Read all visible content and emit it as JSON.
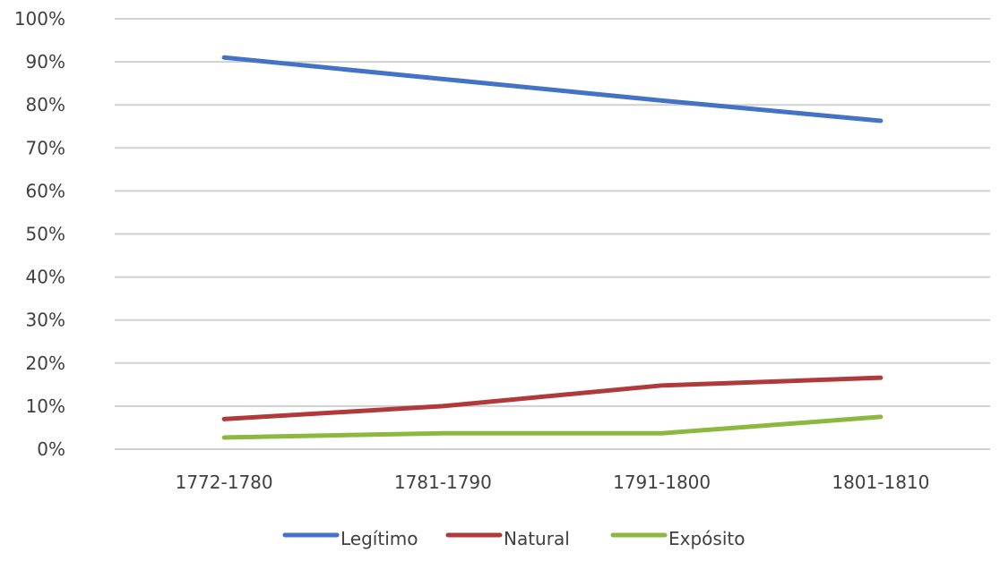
{
  "chart_data": {
    "type": "line",
    "categories": [
      "1772-1780",
      "1781-1790",
      "1791-1800",
      "1801-1810"
    ],
    "series": [
      {
        "name": "Legítimo",
        "color": "#4472C4",
        "values": [
          91,
          86,
          81,
          76.3
        ]
      },
      {
        "name": "Natural",
        "color": "#B03A3A",
        "values": [
          7,
          10,
          14.8,
          16.6
        ]
      },
      {
        "name": "Expósito",
        "color": "#8DB83F",
        "values": [
          2.7,
          3.7,
          3.7,
          7.5
        ]
      }
    ],
    "ylim": [
      0,
      100
    ],
    "yticks": [
      "0%",
      "10%",
      "20%",
      "30%",
      "40%",
      "50%",
      "60%",
      "70%",
      "80%",
      "90%",
      "100%"
    ],
    "grid": true,
    "legend": "bottom",
    "title": "",
    "xlabel": "",
    "ylabel": ""
  }
}
